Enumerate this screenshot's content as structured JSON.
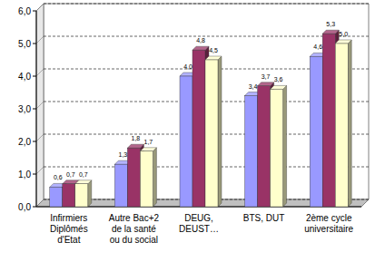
{
  "chart_data": {
    "type": "bar",
    "categories": [
      "Infirmiers\nDiplômés\nd'Etat",
      "Autre Bac+2\nde la santé\nou du social",
      "DEUG,\nDEUST…",
      "BTS, DUT",
      "2ème cycle\nuniversitaire"
    ],
    "series": [
      {
        "color": "#9999ff",
        "values": [
          0.6,
          1.3,
          4.0,
          3.4,
          4.6
        ],
        "value_labels": [
          "0,6",
          "1,3",
          "4,0",
          "3,4",
          "4,6"
        ]
      },
      {
        "color": "#993366",
        "values": [
          0.7,
          1.8,
          4.8,
          3.7,
          5.3
        ],
        "value_labels": [
          "0,7",
          "1,8",
          "4,8",
          "3,7",
          "5,3"
        ]
      },
      {
        "color": "#ffffcc",
        "values": [
          0.7,
          1.7,
          4.5,
          3.6,
          5.0
        ],
        "value_labels": [
          "0,7",
          "1,7",
          "4,5",
          "3,6",
          "5,0"
        ]
      }
    ],
    "ylim": [
      0,
      6
    ],
    "yticks": [
      {
        "value": 0,
        "label": "0,0"
      },
      {
        "value": 1,
        "label": "1,0"
      },
      {
        "value": 2,
        "label": "2,0"
      },
      {
        "value": 3,
        "label": "3,0"
      },
      {
        "value": 4,
        "label": "4,0"
      },
      {
        "value": 5,
        "label": "5,0"
      },
      {
        "value": 6,
        "label": "6,0"
      }
    ],
    "grid": true,
    "data_labels": true
  }
}
